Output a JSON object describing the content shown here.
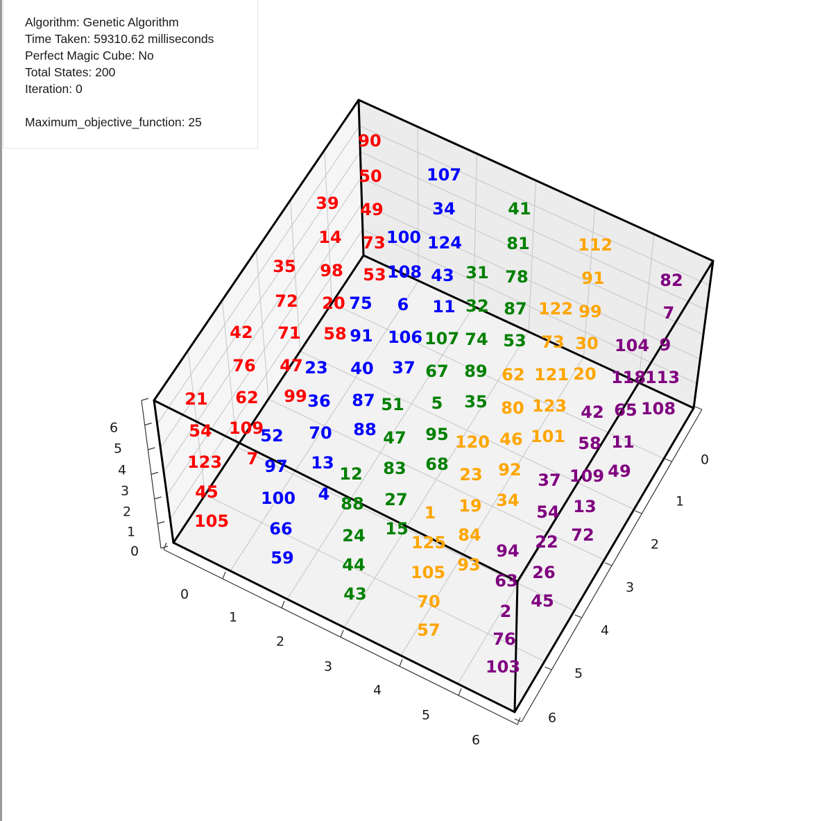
{
  "info": {
    "algorithm": "Algorithm: Genetic Algorithm",
    "time_taken": "Time Taken: 59310.62 milliseconds",
    "perfect": "Perfect Magic Cube: No",
    "total_states": "Total States: 200",
    "iteration": "Iteration: 0",
    "objective": "Maximum_objective_function: 25"
  },
  "axes": {
    "left_ticks": [
      "6",
      "5",
      "4",
      "3",
      "2",
      "1",
      "0"
    ],
    "bottom_ticks": [
      "0",
      "1",
      "2",
      "3",
      "4",
      "5",
      "6"
    ],
    "right_ticks": [
      "0",
      "1",
      "2",
      "3",
      "4",
      "5",
      "6"
    ]
  },
  "colors": {
    "red": "#ff0000",
    "blue": "#0000ff",
    "green": "#008000",
    "orange": "#ffa500",
    "purple": "#800080",
    "edge": "#000000",
    "grid": "#c8c8c8",
    "pane": "#f2f2f2"
  },
  "cube_numbers": {
    "red": [
      "90",
      "50",
      "49",
      "73",
      "53",
      "39",
      "14",
      "98",
      "20",
      "58",
      "35",
      "72",
      "71",
      "47",
      "42",
      "76",
      "62",
      "99",
      "21",
      "54",
      "109",
      "7",
      "123",
      "45",
      "105"
    ],
    "blue": [
      "107",
      "34",
      "124",
      "43",
      "11",
      "100",
      "108",
      "6",
      "106",
      "37",
      "75",
      "91",
      "40",
      "87",
      "88",
      "23",
      "36",
      "52",
      "70",
      "13",
      "97",
      "100",
      "4",
      "66",
      "59"
    ],
    "green": [
      "41",
      "81",
      "78",
      "87",
      "53",
      "31",
      "32",
      "74",
      "89",
      "35",
      "107",
      "67",
      "5",
      "95",
      "68",
      "51",
      "47",
      "83",
      "27",
      "15",
      "12",
      "88",
      "24",
      "44",
      "43"
    ],
    "orange": [
      "112",
      "91",
      "99",
      "30",
      "20",
      "122",
      "73",
      "121",
      "123",
      "101",
      "62",
      "80",
      "46",
      "92",
      "34",
      "120",
      "23",
      "19",
      "84",
      "93",
      "1",
      "125",
      "105",
      "70",
      "57"
    ],
    "purple": [
      "82",
      "7",
      "9",
      "113",
      "108",
      "104",
      "118",
      "65",
      "11",
      "49",
      "42",
      "58",
      "109",
      "13",
      "72",
      "37",
      "54",
      "22",
      "26",
      "45",
      "94",
      "63",
      "2",
      "76",
      "103"
    ]
  }
}
